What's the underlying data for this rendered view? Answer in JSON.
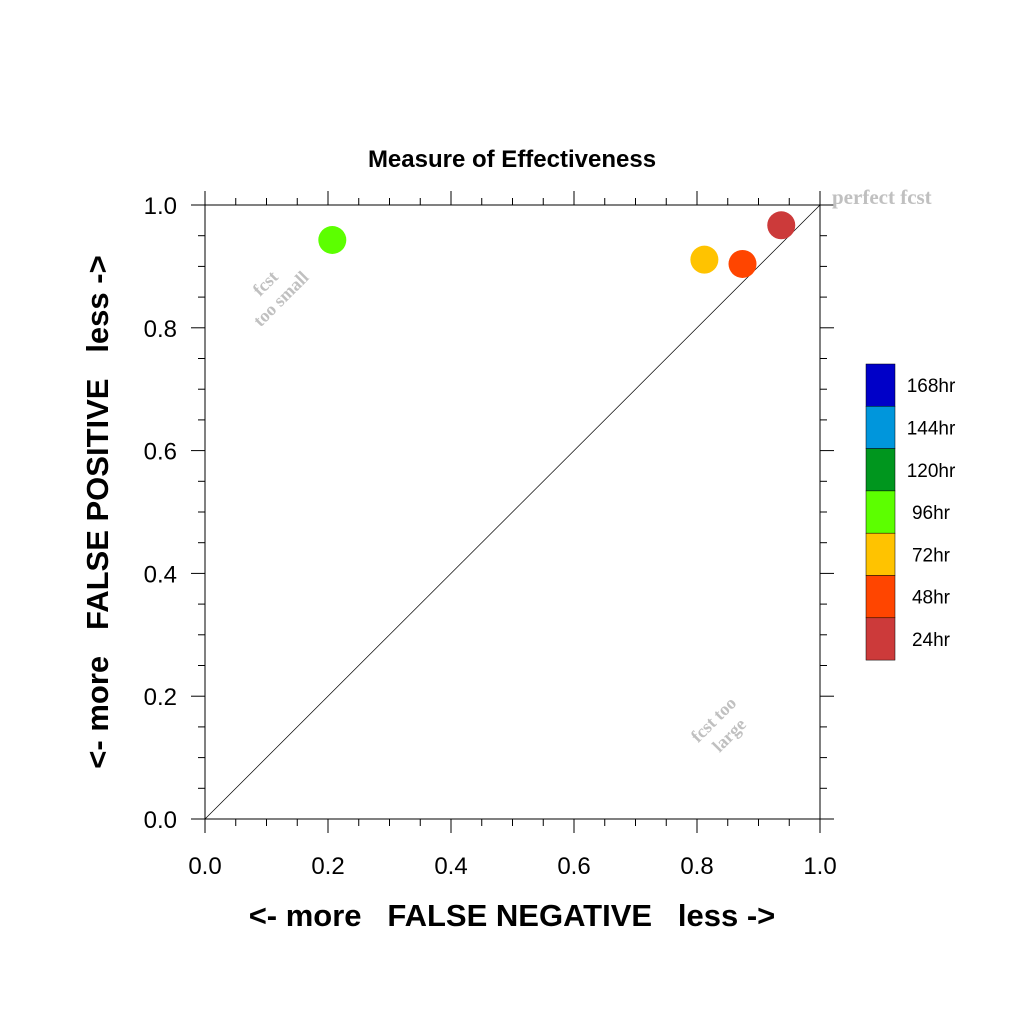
{
  "chart_data": {
    "type": "scatter",
    "title": "Measure of Effectiveness",
    "xlabel": "<- more   FALSE NEGATIVE   less ->",
    "ylabel": "<- more   FALSE POSITIVE   less ->",
    "xlim": [
      0.0,
      1.0
    ],
    "ylim": [
      0.0,
      1.0
    ],
    "xticks": [
      "0.0",
      "0.2",
      "0.4",
      "0.6",
      "0.8",
      "1.0"
    ],
    "yticks": [
      "0.0",
      "0.2",
      "0.4",
      "0.6",
      "0.8",
      "1.0"
    ],
    "grid": false,
    "diagonal_line": true,
    "points": [
      {
        "label": "96hr",
        "x": 0.207,
        "y": 0.943,
        "color": "#5cff00"
      },
      {
        "label": "72hr",
        "x": 0.812,
        "y": 0.911,
        "color": "#ffc300"
      },
      {
        "label": "48hr",
        "x": 0.874,
        "y": 0.904,
        "color": "#ff4500"
      },
      {
        "label": "24hr",
        "x": 0.937,
        "y": 0.967,
        "color": "#cc3a3a"
      }
    ],
    "annotations": {
      "perfect": "perfect fcst",
      "too_small_line1": "fcst",
      "too_small_line2": "too small",
      "too_large_line1": "fcst too",
      "too_large_line2": "large"
    },
    "legend": {
      "placement": "right",
      "entries": [
        {
          "label": "168hr",
          "color": "#0000c8"
        },
        {
          "label": "144hr",
          "color": "#0096dc"
        },
        {
          "label": "120hr",
          "color": "#00961e"
        },
        {
          "label": "96hr",
          "color": "#5cff00"
        },
        {
          "label": "72hr",
          "color": "#ffc300"
        },
        {
          "label": "48hr",
          "color": "#ff4500"
        },
        {
          "label": "24hr",
          "color": "#cc3a3a"
        }
      ]
    }
  }
}
